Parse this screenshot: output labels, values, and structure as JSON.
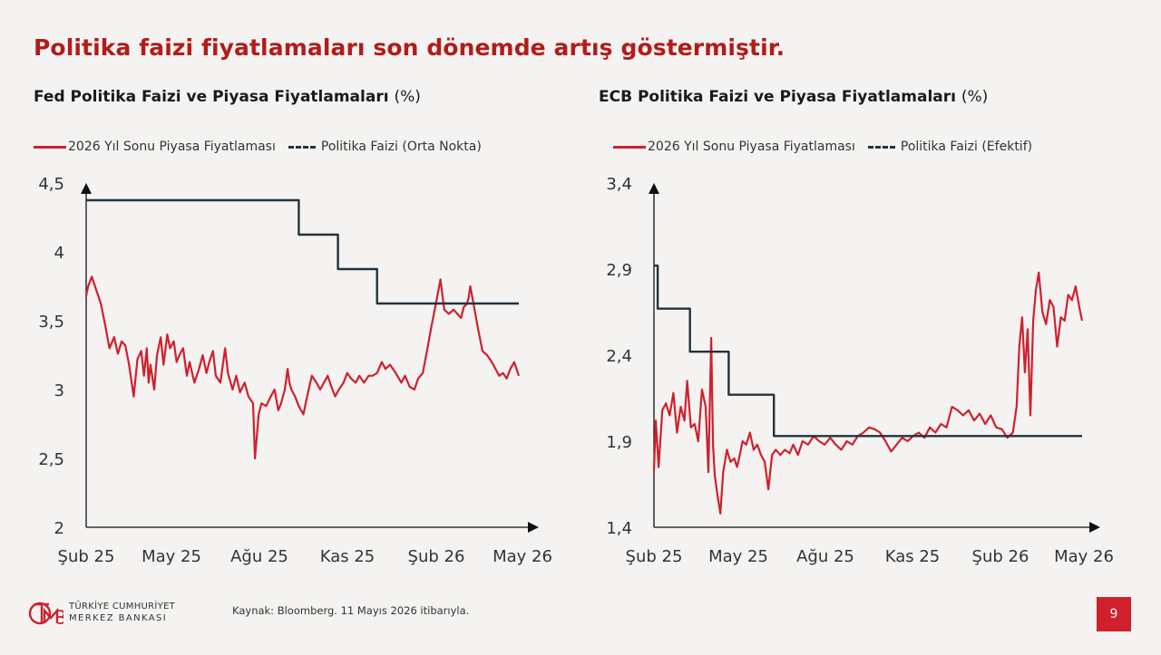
{
  "slide": {
    "title": "Politika faizi fiyatlamaları son dönemde artış göstermiştir.",
    "page_number": "9",
    "source": "Kaynak: Bloomberg. 11 Mayıs 2026 itibarıyla.",
    "logo_line1": "TÜRKİYE CUMHURİYET",
    "logo_line2": "MERKEZ BANKASI"
  },
  "colors": {
    "market": "#d0202e",
    "policy": "#22333d",
    "title": "#b31b1b"
  },
  "chart_data": [
    {
      "type": "line",
      "title": "Fed Politika Faizi ve Piyasa Fiyatlamaları",
      "unit": "(%)",
      "x_ticks": [
        "Şub 25",
        "May 25",
        "Ağu 25",
        "Kas 25",
        "Şub 26",
        "May 26"
      ],
      "xlim": [
        "2025-02-01",
        "2026-05-11"
      ],
      "ylim": [
        2,
        4.5
      ],
      "y_ticks": [
        "2",
        "2,5",
        "3",
        "3,5",
        "4",
        "4,5"
      ],
      "y_tick_values": [
        2,
        2.5,
        3,
        3.5,
        4,
        4.5
      ],
      "series": [
        {
          "name": "2026 Yıl Sonu Piyasa Fiyatlaması",
          "style": "solid",
          "x": [
            "2025-02-01",
            "2025-02-03",
            "2025-02-07",
            "2025-02-12",
            "2025-02-17",
            "2025-02-21",
            "2025-02-26",
            "2025-03-03",
            "2025-03-07",
            "2025-03-11",
            "2025-03-15",
            "2025-03-19",
            "2025-03-24",
            "2025-03-28",
            "2025-04-01",
            "2025-04-04",
            "2025-04-07",
            "2025-04-09",
            "2025-04-11",
            "2025-04-15",
            "2025-04-18",
            "2025-04-22",
            "2025-04-25",
            "2025-04-29",
            "2025-05-02",
            "2025-05-06",
            "2025-05-09",
            "2025-05-12",
            "2025-05-16",
            "2025-05-20",
            "2025-05-23",
            "2025-05-28",
            "2025-06-02",
            "2025-06-06",
            "2025-06-10",
            "2025-06-13",
            "2025-06-17",
            "2025-06-20",
            "2025-06-25",
            "2025-06-30",
            "2025-07-03",
            "2025-07-08",
            "2025-07-12",
            "2025-07-16",
            "2025-07-21",
            "2025-07-25",
            "2025-07-30",
            "2025-08-01",
            "2025-08-05",
            "2025-08-08",
            "2025-08-13",
            "2025-08-18",
            "2025-08-22",
            "2025-08-26",
            "2025-08-29",
            "2025-09-02",
            "2025-09-05",
            "2025-09-07",
            "2025-09-09",
            "2025-09-13",
            "2025-09-17",
            "2025-09-22",
            "2025-09-26",
            "2025-10-01",
            "2025-10-06",
            "2025-10-10",
            "2025-10-14",
            "2025-10-18",
            "2025-10-22",
            "2025-10-26",
            "2025-10-30",
            "2025-11-04",
            "2025-11-08",
            "2025-11-12",
            "2025-11-17",
            "2025-11-21",
            "2025-11-26",
            "2025-12-01",
            "2025-12-05",
            "2025-12-10",
            "2025-12-15",
            "2025-12-19",
            "2025-12-24",
            "2025-12-30",
            "2026-01-05",
            "2026-01-09",
            "2026-01-14",
            "2026-01-19",
            "2026-01-23",
            "2026-01-28",
            "2026-02-02",
            "2026-02-06",
            "2026-02-11",
            "2026-02-16",
            "2026-02-20",
            "2026-02-25",
            "2026-03-02",
            "2026-03-06",
            "2026-03-10",
            "2026-03-13",
            "2026-03-16",
            "2026-03-18",
            "2026-03-20",
            "2026-03-24",
            "2026-03-28",
            "2026-04-02",
            "2026-04-07",
            "2026-04-12",
            "2026-04-16",
            "2026-04-20",
            "2026-04-24",
            "2026-04-28",
            "2026-05-02",
            "2026-05-06",
            "2026-05-11"
          ],
          "y": [
            3.68,
            3.75,
            3.82,
            3.72,
            3.62,
            3.48,
            3.3,
            3.38,
            3.26,
            3.35,
            3.32,
            3.18,
            2.95,
            3.22,
            3.28,
            3.1,
            3.3,
            3.05,
            3.18,
            3.0,
            3.25,
            3.38,
            3.18,
            3.4,
            3.3,
            3.35,
            3.2,
            3.25,
            3.3,
            3.1,
            3.2,
            3.05,
            3.15,
            3.25,
            3.12,
            3.2,
            3.28,
            3.1,
            3.05,
            3.3,
            3.12,
            3.0,
            3.1,
            2.98,
            3.05,
            2.95,
            2.9,
            2.5,
            2.82,
            2.9,
            2.88,
            2.95,
            3.0,
            2.85,
            2.9,
            3.0,
            3.15,
            3.05,
            3.0,
            2.95,
            2.88,
            2.82,
            2.95,
            3.1,
            3.05,
            3.0,
            3.05,
            3.1,
            3.02,
            2.95,
            3.0,
            3.05,
            3.12,
            3.08,
            3.05,
            3.1,
            3.05,
            3.1,
            3.1,
            3.12,
            3.2,
            3.15,
            3.18,
            3.12,
            3.05,
            3.1,
            3.02,
            3.0,
            3.08,
            3.12,
            3.3,
            3.45,
            3.62,
            3.8,
            3.58,
            3.55,
            3.58,
            3.55,
            3.52,
            3.6,
            3.62,
            3.66,
            3.75,
            3.6,
            3.45,
            3.28,
            3.25,
            3.2,
            3.15,
            3.1,
            3.12,
            3.08,
            3.15,
            3.2,
            3.1
          ]
        },
        {
          "name": "Politika Faizi (Orta Nokta)",
          "style": "dashed",
          "x": [
            "2025-02-01",
            "2025-09-17",
            "2025-09-17",
            "2025-10-29",
            "2025-10-29",
            "2025-12-10",
            "2025-12-10",
            "2026-05-11"
          ],
          "y": [
            4.375,
            4.375,
            4.125,
            4.125,
            3.875,
            3.875,
            3.625,
            3.625
          ]
        }
      ]
    },
    {
      "type": "line",
      "title": "ECB Politika Faizi ve Piyasa Fiyatlamaları",
      "unit": "(%)",
      "x_ticks": [
        "Şub 25",
        "May 25",
        "Ağu 25",
        "Kas 25",
        "Şub 26",
        "May 26"
      ],
      "xlim": [
        "2025-02-01",
        "2026-05-11"
      ],
      "ylim": [
        1.4,
        3.4
      ],
      "y_ticks": [
        "1,4",
        "1,9",
        "2,4",
        "2,9",
        "3,4"
      ],
      "y_tick_values": [
        1.4,
        1.9,
        2.4,
        2.9,
        3.4
      ],
      "series": [
        {
          "name": "2026 Yıl Sonu Piyasa Fiyatlaması",
          "style": "solid",
          "x": [
            "2025-02-01",
            "2025-02-03",
            "2025-02-06",
            "2025-02-10",
            "2025-02-14",
            "2025-02-18",
            "2025-02-22",
            "2025-02-26",
            "2025-03-02",
            "2025-03-06",
            "2025-03-09",
            "2025-03-13",
            "2025-03-17",
            "2025-03-21",
            "2025-03-25",
            "2025-03-29",
            "2025-04-01",
            "2025-04-04",
            "2025-04-06",
            "2025-04-08",
            "2025-04-11",
            "2025-04-14",
            "2025-04-17",
            "2025-04-21",
            "2025-04-25",
            "2025-04-29",
            "2025-05-02",
            "2025-05-05",
            "2025-05-08",
            "2025-05-12",
            "2025-05-16",
            "2025-05-20",
            "2025-05-24",
            "2025-05-28",
            "2025-06-01",
            "2025-06-05",
            "2025-06-09",
            "2025-06-13",
            "2025-06-18",
            "2025-06-23",
            "2025-06-28",
            "2025-07-02",
            "2025-07-07",
            "2025-07-12",
            "2025-07-18",
            "2025-07-24",
            "2025-07-30",
            "2025-08-05",
            "2025-08-11",
            "2025-08-17",
            "2025-08-23",
            "2025-08-29",
            "2025-09-04",
            "2025-09-10",
            "2025-09-16",
            "2025-09-22",
            "2025-09-28",
            "2025-10-04",
            "2025-10-10",
            "2025-10-16",
            "2025-10-22",
            "2025-10-28",
            "2025-11-03",
            "2025-11-09",
            "2025-11-15",
            "2025-11-21",
            "2025-11-27",
            "2025-12-03",
            "2025-12-09",
            "2025-12-15",
            "2025-12-21",
            "2025-12-27",
            "2026-01-02",
            "2026-01-08",
            "2026-01-14",
            "2026-01-20",
            "2026-01-26",
            "2026-02-01",
            "2026-02-07",
            "2026-02-13",
            "2026-02-19",
            "2026-02-25",
            "2026-03-01",
            "2026-03-04",
            "2026-03-07",
            "2026-03-10",
            "2026-03-13",
            "2026-03-16",
            "2026-03-19",
            "2026-03-22",
            "2026-03-25",
            "2026-03-29",
            "2026-04-02",
            "2026-04-06",
            "2026-04-10",
            "2026-04-14",
            "2026-04-18",
            "2026-04-22",
            "2026-04-26",
            "2026-04-30",
            "2026-05-04",
            "2026-05-08",
            "2026-05-11"
          ],
          "y": [
            1.73,
            2.02,
            1.75,
            2.08,
            2.12,
            2.05,
            2.18,
            1.95,
            2.1,
            2.02,
            2.25,
            1.98,
            2.0,
            1.9,
            2.2,
            2.1,
            1.72,
            2.5,
            1.88,
            1.7,
            1.58,
            1.48,
            1.72,
            1.85,
            1.78,
            1.8,
            1.75,
            1.82,
            1.9,
            1.88,
            1.95,
            1.85,
            1.88,
            1.82,
            1.78,
            1.62,
            1.82,
            1.85,
            1.82,
            1.85,
            1.83,
            1.88,
            1.82,
            1.9,
            1.88,
            1.93,
            1.9,
            1.88,
            1.92,
            1.88,
            1.85,
            1.9,
            1.88,
            1.93,
            1.95,
            1.98,
            1.97,
            1.95,
            1.9,
            1.84,
            1.88,
            1.92,
            1.9,
            1.93,
            1.95,
            1.92,
            1.98,
            1.95,
            2.0,
            1.98,
            2.1,
            2.08,
            2.05,
            2.08,
            2.02,
            2.06,
            2.0,
            2.05,
            1.98,
            1.97,
            1.92,
            1.95,
            2.1,
            2.45,
            2.62,
            2.3,
            2.55,
            2.05,
            2.6,
            2.78,
            2.88,
            2.65,
            2.58,
            2.72,
            2.68,
            2.45,
            2.62,
            2.6,
            2.75,
            2.72,
            2.8,
            2.68,
            2.6
          ]
        },
        {
          "name": "Politika Faizi (Efektif)",
          "style": "dashed",
          "x": [
            "2025-02-01",
            "2025-02-05",
            "2025-02-05",
            "2025-03-12",
            "2025-03-12",
            "2025-04-23",
            "2025-04-23",
            "2025-06-11",
            "2025-06-11",
            "2026-05-11"
          ],
          "y": [
            2.92,
            2.92,
            2.67,
            2.67,
            2.42,
            2.42,
            2.17,
            2.17,
            1.93,
            1.93
          ]
        }
      ]
    }
  ]
}
